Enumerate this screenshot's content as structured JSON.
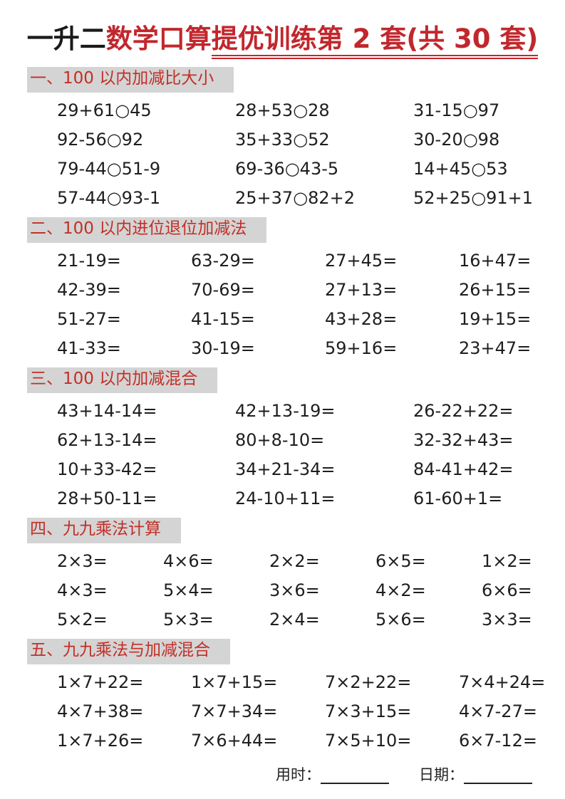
{
  "title": {
    "black_part": "一升二",
    "red_part": "数学口算",
    "underlined_part": "提优训练第 2 套(共 30 套)"
  },
  "sections": [
    {
      "header": "一、100 以内加减比大小",
      "problems": [
        [
          "29+61○45",
          "28+53○28",
          "31-15○97"
        ],
        [
          "92-56○92",
          "35+33○52",
          "30-20○98"
        ],
        [
          "79-44○51-9",
          "69-36○43-5",
          "14+45○53"
        ],
        [
          "57-44○93-1",
          "25+37○82+2",
          "52+25○91+1"
        ]
      ]
    },
    {
      "header": "二、100 以内进位退位加减法",
      "problems": [
        [
          "21-19=",
          "63-29=",
          "27+45=",
          "16+47="
        ],
        [
          "42-39=",
          "70-69=",
          "27+13=",
          "26+15="
        ],
        [
          "51-27=",
          "41-15=",
          "43+28=",
          "19+15="
        ],
        [
          "41-33=",
          "30-19=",
          "59+16=",
          "23+47="
        ]
      ]
    },
    {
      "header": "三、100 以内加减混合",
      "problems": [
        [
          "43+14-14=",
          "42+13-19=",
          "26-22+22="
        ],
        [
          "62+13-14=",
          "80+8-10=",
          "32-32+43="
        ],
        [
          "10+33-42=",
          "34+21-34=",
          "84-41+42="
        ],
        [
          "28+50-11=",
          "24-10+11=",
          "61-60+1="
        ]
      ]
    },
    {
      "header": "四、九九乘法计算",
      "problems": [
        [
          "2×3=",
          "4×6=",
          "2×2=",
          "6×5=",
          "1×2="
        ],
        [
          "4×3=",
          "5×4=",
          "3×6=",
          "4×2=",
          "6×6="
        ],
        [
          "5×2=",
          "5×3=",
          "2×4=",
          "5×6=",
          "3×3="
        ]
      ]
    },
    {
      "header": "五、九九乘法与加减混合",
      "problems": [
        [
          "1×7+22=",
          "1×7+15=",
          "7×2+22=",
          "7×4+24="
        ],
        [
          "4×7+38=",
          "7×7+34=",
          "7×3+15=",
          "4×7-27="
        ],
        [
          "1×7+26=",
          "7×6+44=",
          "7×5+10=",
          "6×7-12="
        ]
      ]
    }
  ],
  "footer": {
    "time_label": "用时：",
    "date_label": "日期："
  },
  "colors": {
    "title_black": "#1a1a1a",
    "accent_red": "#c1272d",
    "section_header_red": "#c22f27",
    "section_header_bg": "#d4d4d4",
    "problem_text": "#1e1e1e"
  }
}
